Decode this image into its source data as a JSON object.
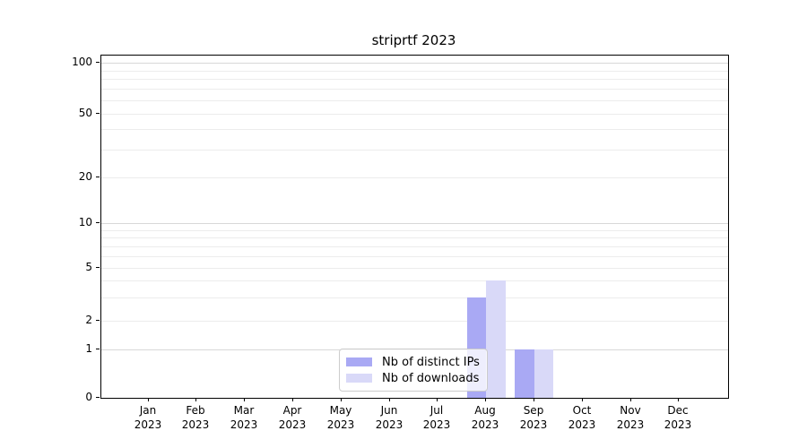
{
  "chart": {
    "title": "striprtf 2023",
    "chart_data": {
      "type": "bar",
      "categories": [
        "Jan",
        "Feb",
        "Mar",
        "Apr",
        "May",
        "Jun",
        "Jul",
        "Aug",
        "Sep",
        "Oct",
        "Nov",
        "Dec"
      ],
      "category_year": "2023",
      "series": [
        {
          "name": "Nb of distinct IPs",
          "color": "#a9a9f4",
          "values": [
            0,
            0,
            0,
            0,
            0,
            0,
            0,
            3,
            1,
            0,
            0,
            0
          ]
        },
        {
          "name": "Nb of downloads",
          "color": "#d9d9f8",
          "values": [
            0,
            0,
            0,
            0,
            0,
            0,
            0,
            4,
            1,
            0,
            0,
            0
          ]
        }
      ],
      "title": "striprtf 2023",
      "xlabel": "",
      "ylabel": "",
      "yticks": [
        0,
        1,
        2,
        5,
        10,
        20,
        50,
        100
      ],
      "ylim": [
        0,
        100
      ],
      "yscale": "symlog",
      "grid": "on",
      "grid_minor": "on",
      "legend_position": "bottom-center"
    },
    "colors": {
      "grid_major": "#d8d8d8",
      "grid_minor": "#ececec",
      "spine": "#000000",
      "legend_border": "#cccccc"
    }
  }
}
